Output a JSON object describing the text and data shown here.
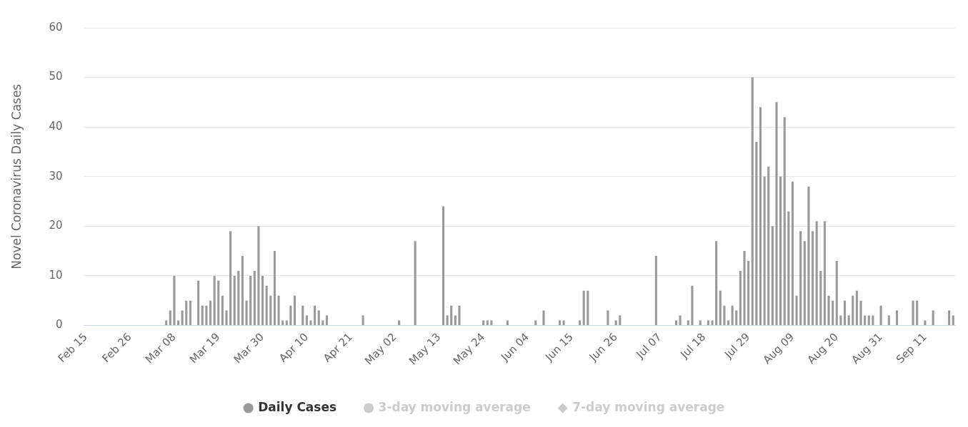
{
  "chart_data": {
    "type": "bar",
    "ylabel": "Novel Coronavirus Daily Cases",
    "categories": [
      "Feb 15",
      null,
      null,
      null,
      null,
      null,
      null,
      null,
      null,
      null,
      null,
      "Feb 26",
      null,
      null,
      null,
      null,
      null,
      null,
      null,
      null,
      null,
      null,
      "Mar 08",
      null,
      null,
      null,
      null,
      null,
      null,
      null,
      null,
      null,
      null,
      "Mar 19",
      null,
      null,
      null,
      null,
      null,
      null,
      null,
      null,
      null,
      null,
      "Mar 30",
      null,
      null,
      null,
      null,
      null,
      null,
      null,
      null,
      null,
      null,
      "Apr 10",
      null,
      null,
      null,
      null,
      null,
      null,
      null,
      null,
      null,
      null,
      "Apr 21",
      null,
      null,
      null,
      null,
      null,
      null,
      null,
      null,
      null,
      null,
      "May 02",
      null,
      null,
      null,
      null,
      null,
      null,
      null,
      null,
      null,
      null,
      "May 13",
      null,
      null,
      null,
      null,
      null,
      null,
      null,
      null,
      null,
      null,
      "May 24",
      null,
      null,
      null,
      null,
      null,
      null,
      null,
      null,
      null,
      null,
      "Jun 04",
      null,
      null,
      null,
      null,
      null,
      null,
      null,
      null,
      null,
      null,
      "Jun 15",
      null,
      null,
      null,
      null,
      null,
      null,
      null,
      null,
      null,
      null,
      "Jun 26",
      null,
      null,
      null,
      null,
      null,
      null,
      null,
      null,
      null,
      null,
      "Jul 07",
      null,
      null,
      null,
      null,
      null,
      null,
      null,
      null,
      null,
      null,
      "Jul 18",
      null,
      null,
      null,
      null,
      null,
      null,
      null,
      null,
      null,
      null,
      "Jul 29",
      null,
      null,
      null,
      null,
      null,
      null,
      null,
      null,
      null,
      null,
      "Aug 09",
      null,
      null,
      null,
      null,
      null,
      null,
      null,
      null,
      null,
      null,
      "Aug 20",
      null,
      null,
      null,
      null,
      null,
      null,
      null,
      null,
      null,
      null,
      "Aug 31",
      null,
      null,
      null,
      null,
      null,
      null,
      null,
      null,
      null,
      null,
      "Sep 11",
      null,
      null,
      null,
      null,
      null,
      null,
      null
    ],
    "series": [
      {
        "name": "Daily Cases",
        "marker": "circle",
        "color": "#999999",
        "values": [
          0,
          0,
          0,
          0,
          0,
          0,
          0,
          0,
          0,
          0,
          0,
          0,
          0,
          0,
          0,
          0,
          0,
          0,
          0,
          0,
          1,
          3,
          10,
          1,
          3,
          5,
          5,
          0,
          9,
          4,
          4,
          5,
          10,
          9,
          6,
          3,
          19,
          10,
          11,
          14,
          5,
          10,
          11,
          20,
          10,
          8,
          6,
          15,
          6,
          1,
          1,
          4,
          6,
          0,
          4,
          2,
          1,
          4,
          3,
          1,
          2,
          0,
          0,
          0,
          0,
          0,
          0,
          0,
          0,
          2,
          0,
          0,
          0,
          0,
          0,
          0,
          0,
          0,
          1,
          0,
          0,
          0,
          17,
          0,
          0,
          0,
          0,
          0,
          0,
          24,
          2,
          4,
          2,
          4,
          0,
          0,
          0,
          0,
          0,
          1,
          1,
          1,
          0,
          0,
          0,
          1,
          0,
          0,
          0,
          0,
          0,
          0,
          1,
          0,
          3,
          0,
          0,
          0,
          1,
          1,
          0,
          0,
          0,
          1,
          7,
          7,
          0,
          0,
          0,
          0,
          3,
          0,
          1,
          2,
          0,
          0,
          0,
          0,
          0,
          0,
          0,
          0,
          14,
          0,
          0,
          0,
          0,
          1,
          2,
          0,
          1,
          8,
          0,
          1,
          0,
          1,
          1,
          17,
          7,
          4,
          1,
          4,
          3,
          11,
          15,
          13,
          50,
          37,
          44,
          30,
          32,
          20,
          45,
          30,
          42,
          23,
          29,
          6,
          19,
          17,
          28,
          19,
          21,
          11,
          21,
          6,
          5,
          13,
          2,
          5,
          2,
          6,
          7,
          5,
          2,
          2,
          2,
          0,
          4,
          0,
          2,
          0,
          3,
          0,
          0,
          0,
          5,
          5,
          0,
          1,
          0,
          3,
          0,
          0,
          0,
          3,
          2
        ]
      },
      {
        "name": "3-day moving average",
        "type": "line",
        "marker": "circle",
        "color": "#cccccc",
        "values": [
          null,
          null,
          null,
          null,
          null,
          null,
          null,
          null,
          null,
          null,
          null,
          null,
          null,
          null,
          null,
          null,
          null,
          null,
          null,
          null,
          null,
          null,
          null,
          null,
          null,
          null,
          null,
          null,
          null,
          null,
          null,
          null,
          null,
          null,
          null,
          null,
          null,
          null,
          null,
          null,
          null,
          null,
          null,
          null,
          null,
          null,
          null,
          null,
          null,
          null,
          null,
          null,
          null,
          null,
          null,
          null,
          null,
          null,
          null,
          null,
          null,
          null,
          null,
          null,
          null,
          null,
          null,
          null,
          null,
          null,
          null,
          null,
          null,
          null,
          null,
          null,
          null,
          null,
          null,
          null,
          null,
          null,
          null,
          null,
          null,
          null,
          null,
          null,
          null,
          null,
          null,
          null,
          null,
          null,
          null,
          null,
          null,
          null,
          null,
          null,
          null,
          null,
          null,
          null,
          null,
          null,
          null,
          null,
          null,
          null,
          null,
          null,
          null,
          null,
          null,
          null,
          null,
          null,
          null,
          null,
          null,
          null,
          null,
          null,
          null,
          null,
          null,
          null,
          null,
          null,
          null,
          null,
          null,
          null,
          null,
          null,
          null,
          null,
          null,
          null,
          null,
          null,
          null,
          null,
          null,
          null,
          null,
          null,
          null,
          null,
          null,
          null,
          null,
          null,
          null,
          null,
          null,
          null,
          null,
          null,
          null,
          null,
          null,
          null,
          null,
          null,
          null,
          null,
          null,
          null,
          null,
          null,
          null,
          null,
          null,
          null,
          null,
          null,
          null,
          null,
          null,
          null,
          null,
          null,
          null,
          null,
          null,
          null,
          null,
          null,
          null,
          null,
          null,
          null,
          null,
          null,
          null,
          null,
          null,
          null,
          null,
          null,
          null,
          null,
          null,
          null,
          null,
          null,
          null,
          null,
          null,
          null,
          null,
          null,
          null,
          null,
          null
        ]
      },
      {
        "name": "7-day moving average",
        "type": "line",
        "marker": "diamond",
        "color": "#cccccc",
        "values": [
          null,
          null,
          null,
          null,
          null,
          null,
          null,
          null,
          null,
          null,
          null,
          null,
          null,
          null,
          null,
          null,
          null,
          null,
          null,
          null,
          null,
          null,
          null,
          null,
          null,
          null,
          null,
          null,
          null,
          null,
          null,
          null,
          null,
          null,
          null,
          null,
          null,
          null,
          null,
          null,
          null,
          null,
          null,
          null,
          null,
          null,
          null,
          null,
          null,
          null,
          null,
          null,
          null,
          null,
          null,
          null,
          null,
          null,
          null,
          null,
          null,
          null,
          null,
          null,
          null,
          null,
          null,
          null,
          null,
          null,
          null,
          null,
          null,
          null,
          null,
          null,
          null,
          null,
          null,
          null,
          null,
          null,
          null,
          null,
          null,
          null,
          null,
          null,
          null,
          null,
          null,
          null,
          null,
          null,
          null,
          null,
          null,
          null,
          null,
          null,
          null,
          null,
          null,
          null,
          null,
          null,
          null,
          null,
          null,
          null,
          null,
          null,
          null,
          null,
          null,
          null,
          null,
          null,
          null,
          null,
          null,
          null,
          null,
          null,
          null,
          null,
          null,
          null,
          null,
          null,
          null,
          null,
          null,
          null,
          null,
          null,
          null,
          null,
          null,
          null,
          null,
          null,
          null,
          null,
          null,
          null,
          null,
          null,
          null,
          null,
          null,
          null,
          null,
          null,
          null,
          null,
          null,
          null,
          null,
          null,
          null,
          null,
          null,
          null,
          null,
          null,
          null,
          null,
          null,
          null,
          null,
          null,
          null,
          null,
          null,
          null,
          null,
          null,
          null,
          null,
          null,
          null,
          null,
          null,
          null,
          null,
          null,
          null,
          null,
          null,
          null,
          null,
          null,
          null,
          null,
          null,
          null,
          null,
          null,
          null,
          null,
          null,
          null,
          null,
          null,
          null,
          null,
          null,
          null,
          null,
          null,
          null,
          null,
          null,
          null,
          null,
          null
        ]
      }
    ],
    "ylim": [
      0,
      60
    ],
    "yticks": [
      0,
      10,
      20,
      30,
      40,
      50,
      60
    ],
    "grid": "y",
    "legend": "bottom"
  }
}
